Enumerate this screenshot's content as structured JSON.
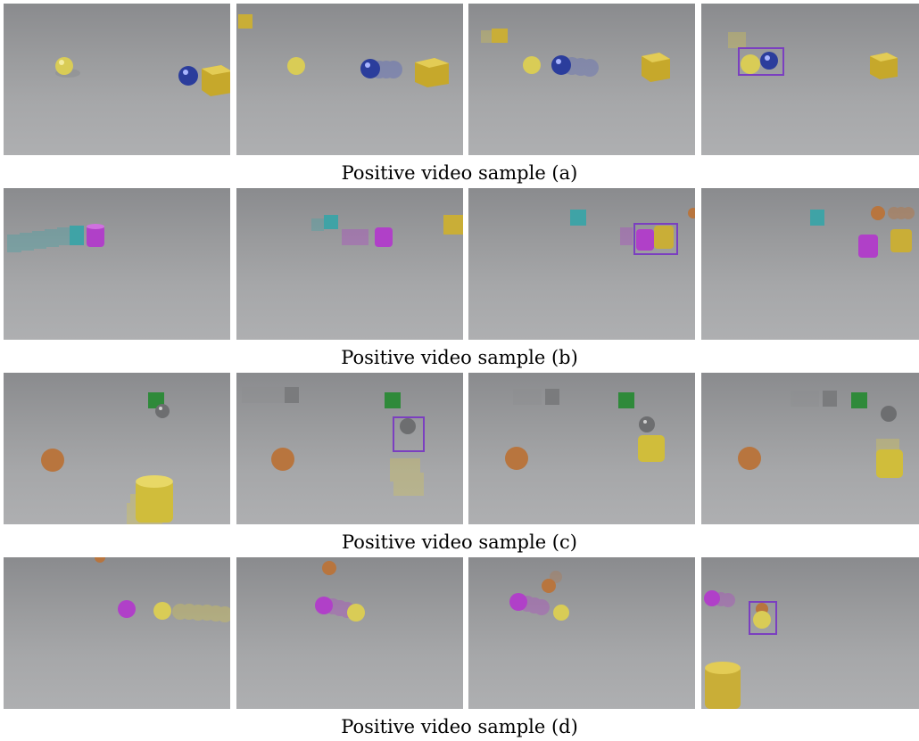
{
  "captions": {
    "a": "Positive video sample (a)",
    "b": "Positive video sample (b)",
    "c": "Positive video sample (c)",
    "d": "Positive video sample (d)"
  },
  "colors": {
    "floor": "#9c9d9f",
    "highlight_box": "#7b3fc0",
    "yellow": "#d9c84a",
    "gold": "#c7a92a",
    "blue_metal": "#2c3f9e",
    "cyan": "#3fa3a6",
    "purple": "#b040c8",
    "green": "#2f8a3a",
    "brown": "#b8753e",
    "gray_metal": "#6d6e70"
  }
}
